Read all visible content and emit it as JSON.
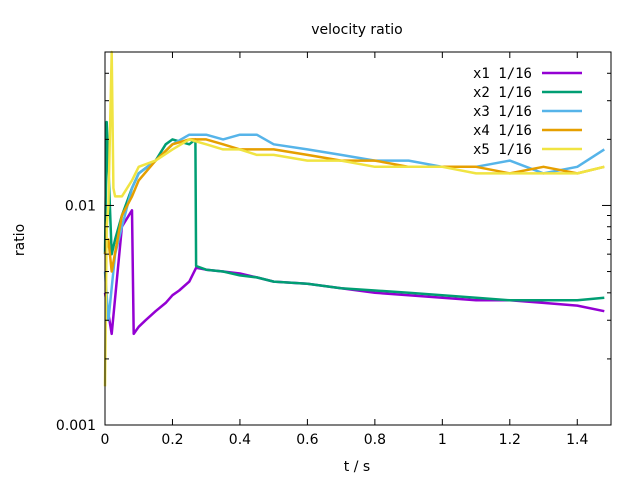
{
  "chart_data": {
    "type": "line",
    "title": "velocity ratio",
    "xlabel": "t / s",
    "ylabel": "ratio",
    "xlim": [
      0,
      1.5
    ],
    "ylim": [
      0.001,
      0.05
    ],
    "yscale": "log",
    "grid": false,
    "legend_position": "top-right",
    "xticks": [
      0,
      0.2,
      0.4,
      0.6,
      0.8,
      1,
      1.2,
      1.4
    ],
    "xtick_labels": [
      "0",
      "0.2",
      "0.4",
      "0.6",
      "0.8",
      "1",
      "1.2",
      "1.4"
    ],
    "yticks": [
      0.001,
      0.01
    ],
    "ytick_labels": [
      "0.001",
      "0.01"
    ],
    "series": [
      {
        "name": "x1 1/16",
        "color": "#9400d3",
        "x": [
          0,
          0.02,
          0.05,
          0.08,
          0.085,
          0.1,
          0.12,
          0.15,
          0.18,
          0.2,
          0.22,
          0.25,
          0.27,
          0.3,
          0.35,
          0.4,
          0.45,
          0.5,
          0.6,
          0.7,
          0.8,
          0.9,
          1.0,
          1.1,
          1.2,
          1.3,
          1.4,
          1.48
        ],
        "y": [
          0.004,
          0.0026,
          0.008,
          0.0095,
          0.0026,
          0.0028,
          0.003,
          0.0033,
          0.0036,
          0.0039,
          0.0041,
          0.0045,
          0.0052,
          0.0051,
          0.005,
          0.0049,
          0.0047,
          0.0045,
          0.0044,
          0.0042,
          0.004,
          0.0039,
          0.0038,
          0.0037,
          0.0037,
          0.0036,
          0.0035,
          0.0033
        ]
      },
      {
        "name": "x2 1/16",
        "color": "#009e73",
        "x": [
          0,
          0.005,
          0.02,
          0.03,
          0.05,
          0.08,
          0.1,
          0.15,
          0.18,
          0.2,
          0.25,
          0.268,
          0.27,
          0.3,
          0.35,
          0.4,
          0.45,
          0.5,
          0.6,
          0.7,
          0.8,
          0.9,
          1.0,
          1.1,
          1.2,
          1.3,
          1.4,
          1.48
        ],
        "y": [
          0.006,
          0.024,
          0.006,
          0.007,
          0.009,
          0.012,
          0.014,
          0.016,
          0.019,
          0.02,
          0.019,
          0.02,
          0.0053,
          0.0051,
          0.005,
          0.0048,
          0.0047,
          0.0045,
          0.0044,
          0.0042,
          0.0041,
          0.004,
          0.0039,
          0.0038,
          0.0037,
          0.0037,
          0.0037,
          0.0038
        ]
      },
      {
        "name": "x3 1/16",
        "color": "#56b4e9",
        "x": [
          0,
          0.01,
          0.03,
          0.05,
          0.08,
          0.1,
          0.15,
          0.2,
          0.25,
          0.3,
          0.35,
          0.4,
          0.45,
          0.5,
          0.6,
          0.7,
          0.8,
          0.9,
          1.0,
          1.1,
          1.2,
          1.3,
          1.4,
          1.48
        ],
        "y": [
          0.005,
          0.003,
          0.006,
          0.008,
          0.012,
          0.014,
          0.016,
          0.019,
          0.021,
          0.021,
          0.02,
          0.021,
          0.021,
          0.019,
          0.018,
          0.017,
          0.016,
          0.016,
          0.015,
          0.015,
          0.016,
          0.014,
          0.015,
          0.018
        ]
      },
      {
        "name": "x4 1/16",
        "color": "#e69f00",
        "x": [
          0,
          0.01,
          0.02,
          0.05,
          0.08,
          0.1,
          0.15,
          0.2,
          0.25,
          0.3,
          0.35,
          0.4,
          0.45,
          0.5,
          0.6,
          0.7,
          0.8,
          0.9,
          1.0,
          1.1,
          1.2,
          1.3,
          1.4,
          1.48
        ],
        "y": [
          0.006,
          0.007,
          0.005,
          0.009,
          0.011,
          0.013,
          0.016,
          0.019,
          0.02,
          0.02,
          0.019,
          0.018,
          0.018,
          0.018,
          0.017,
          0.016,
          0.016,
          0.015,
          0.015,
          0.015,
          0.014,
          0.015,
          0.014,
          0.015
        ]
      },
      {
        "name": "x5 1/16",
        "color": "#f0e442",
        "x": [
          0,
          0.005,
          0.01,
          0.02,
          0.025,
          0.03,
          0.05,
          0.08,
          0.1,
          0.15,
          0.2,
          0.25,
          0.3,
          0.35,
          0.4,
          0.45,
          0.5,
          0.6,
          0.7,
          0.8,
          0.9,
          1.0,
          1.1,
          1.2,
          1.3,
          1.4,
          1.48
        ],
        "y": [
          0.0015,
          0.008,
          0.01,
          0.05,
          0.012,
          0.011,
          0.011,
          0.013,
          0.015,
          0.016,
          0.018,
          0.02,
          0.019,
          0.018,
          0.018,
          0.017,
          0.017,
          0.016,
          0.016,
          0.015,
          0.015,
          0.015,
          0.014,
          0.014,
          0.014,
          0.014,
          0.015
        ]
      }
    ]
  }
}
